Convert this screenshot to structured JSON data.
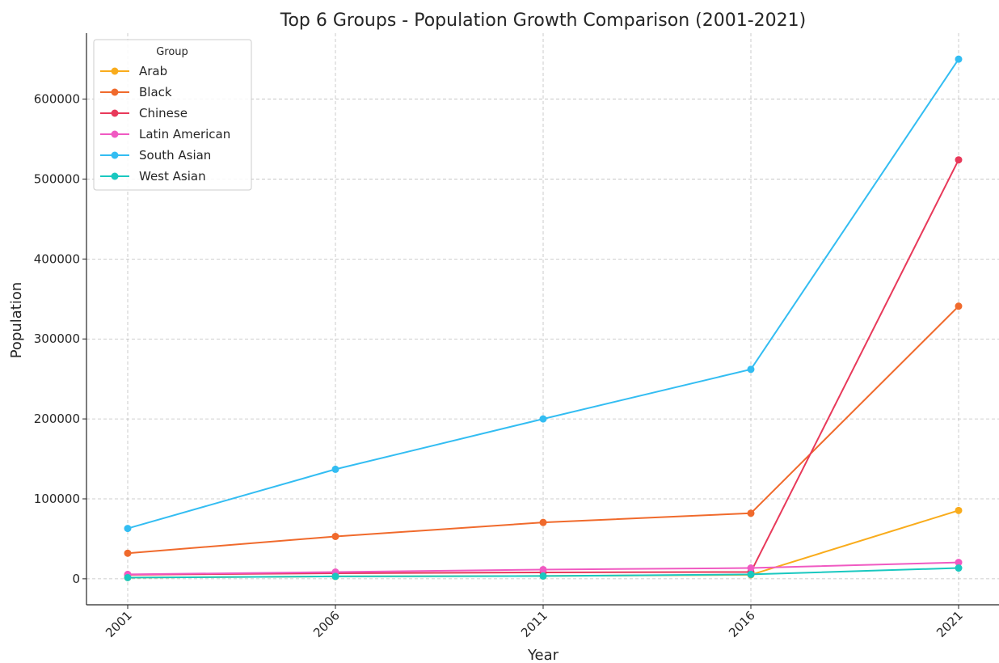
{
  "chart_data": {
    "type": "line",
    "title": "Top 6 Groups - Population Growth Comparison (2001-2021)",
    "xlabel": "Year",
    "ylabel": "Population",
    "x": [
      "2001",
      "2006",
      "2011",
      "2016",
      "2021"
    ],
    "ylim": [
      -32500,
      682500
    ],
    "yticks": [
      0,
      100000,
      200000,
      300000,
      400000,
      500000,
      600000
    ],
    "ytick_labels": [
      "0",
      "100000",
      "200000",
      "300000",
      "400000",
      "500000",
      "600000"
    ],
    "grid": true,
    "legend": {
      "title": "Group",
      "placement": "top-left"
    },
    "series": [
      {
        "name": "Arab",
        "color": "#f9ac1c",
        "values": [
          1500,
          3000,
          3500,
          5000,
          85500
        ]
      },
      {
        "name": "Black",
        "color": "#f06a2c",
        "values": [
          32000,
          53000,
          70500,
          82000,
          341000
        ]
      },
      {
        "name": "Chinese",
        "color": "#e8395a",
        "values": [
          5000,
          7000,
          8000,
          8500,
          524000
        ]
      },
      {
        "name": "Latin American",
        "color": "#f05ac2",
        "values": [
          5500,
          8500,
          11500,
          13500,
          20500
        ]
      },
      {
        "name": "South Asian",
        "color": "#33bdf2",
        "values": [
          63000,
          137000,
          200000,
          262000,
          650000
        ]
      },
      {
        "name": "West Asian",
        "color": "#19c8c0",
        "values": [
          1500,
          3000,
          3500,
          5500,
          13500
        ]
      }
    ]
  }
}
